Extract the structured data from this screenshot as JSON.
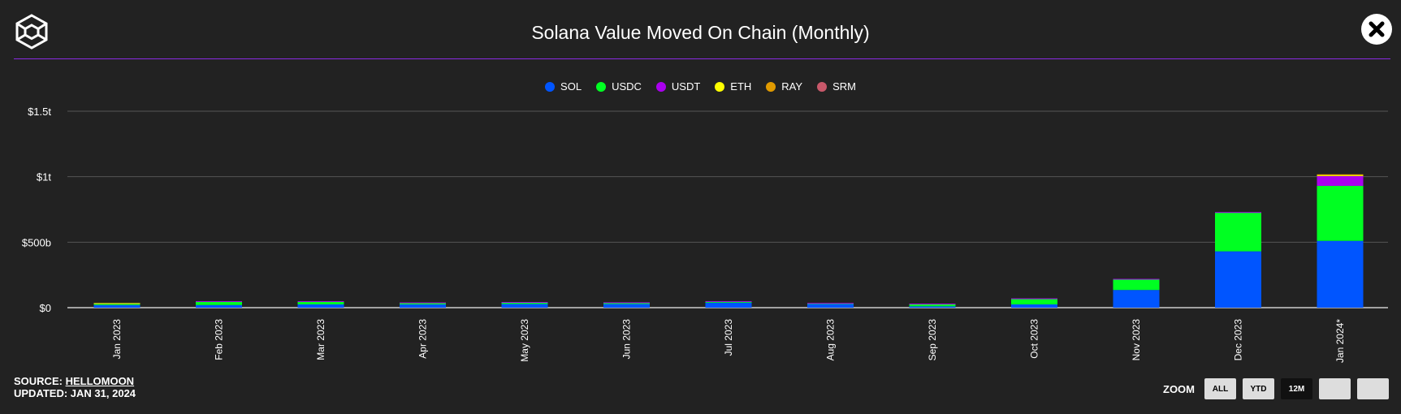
{
  "header": {
    "title": "Solana Value Moved On Chain (Monthly)",
    "logo_icon": "cube-logo-icon",
    "close_icon": "close-x-icon"
  },
  "footer": {
    "source_label": "SOURCE:",
    "source_link": "HELLOMOON",
    "updated": "UPDATED: JAN 31, 2024"
  },
  "zoom": {
    "label": "ZOOM",
    "buttons": [
      {
        "label": "ALL",
        "active": false
      },
      {
        "label": "YTD",
        "active": false
      },
      {
        "label": "12M",
        "active": true
      },
      {
        "label": "",
        "active": false
      },
      {
        "label": "",
        "active": false
      }
    ]
  },
  "chart_data": {
    "type": "bar",
    "stacked": true,
    "title": "Solana Value Moved On Chain (Monthly)",
    "legend_position": "top",
    "grid": true,
    "ylim": [
      0,
      1500
    ],
    "y_unit": "billions USD",
    "y_ticks": [
      {
        "value": 0,
        "label": "$0"
      },
      {
        "value": 500,
        "label": "$500b"
      },
      {
        "value": 1000,
        "label": "$1t"
      },
      {
        "value": 1500,
        "label": "$1.5t"
      }
    ],
    "categories": [
      "Jan 2023",
      "Feb 2023",
      "Mar 2023",
      "Apr 2023",
      "May 2023",
      "Jun 2023",
      "Jul 2023",
      "Aug 2023",
      "Sep 2023",
      "Oct 2023",
      "Nov 2023",
      "Dec 2023",
      "Jan 2024*"
    ],
    "series": [
      {
        "name": "SOL",
        "color": "#0055ff",
        "values": [
          20,
          20,
          25,
          25,
          28,
          28,
          38,
          28,
          10,
          25,
          135,
          430,
          510
        ]
      },
      {
        "name": "USDC",
        "color": "#00ff22",
        "values": [
          12,
          28,
          23,
          10,
          14,
          10,
          8,
          5,
          20,
          45,
          82,
          295,
          420
        ]
      },
      {
        "name": "USDT",
        "color": "#aa00ee",
        "values": [
          2,
          2,
          2,
          5,
          1,
          3,
          4,
          3,
          1,
          1,
          3,
          5,
          75
        ]
      },
      {
        "name": "ETH",
        "color": "#ffff00",
        "values": [
          1,
          0,
          0,
          0,
          0,
          0,
          0,
          0,
          0,
          0,
          0,
          0,
          10
        ]
      },
      {
        "name": "RAY",
        "color": "#e09a00",
        "values": [
          0,
          0,
          0,
          0,
          0,
          0,
          0,
          0,
          0,
          0,
          0,
          0,
          3
        ]
      },
      {
        "name": "SRM",
        "color": "#c8586a",
        "values": [
          0,
          0,
          0,
          0,
          0,
          0,
          0,
          0,
          0,
          0,
          0,
          0,
          0
        ]
      }
    ]
  }
}
